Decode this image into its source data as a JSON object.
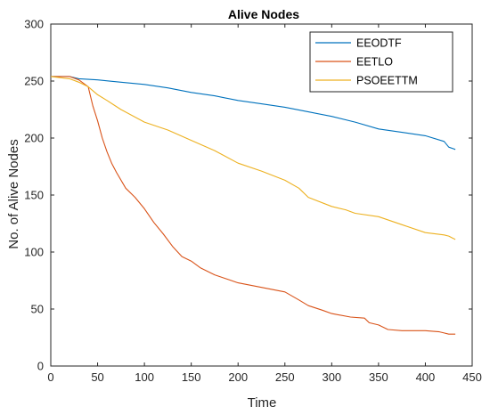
{
  "chart_data": {
    "type": "line",
    "title": "Alive Nodes",
    "xlabel": "Time",
    "ylabel": "No. of Alive Nodes",
    "xlim": [
      0,
      450
    ],
    "ylim": [
      0,
      300
    ],
    "xticks": [
      0,
      50,
      100,
      150,
      200,
      250,
      300,
      350,
      400,
      450
    ],
    "yticks": [
      0,
      50,
      100,
      150,
      200,
      250,
      300
    ],
    "grid": false,
    "legend_position": "top-right",
    "series": [
      {
        "name": "EEODTF",
        "color": "#0072BD",
        "x": [
          0,
          20,
          30,
          50,
          75,
          100,
          125,
          150,
          175,
          200,
          225,
          250,
          275,
          300,
          325,
          350,
          375,
          400,
          420,
          425,
          432
        ],
        "y": [
          254,
          254,
          252,
          251,
          249,
          247,
          244,
          240,
          237,
          233,
          230,
          227,
          223,
          219,
          214,
          208,
          205,
          202,
          197,
          192,
          190
        ]
      },
      {
        "name": "EETLO",
        "color": "#D95319",
        "x": [
          0,
          20,
          30,
          40,
          45,
          50,
          55,
          60,
          65,
          70,
          80,
          90,
          100,
          110,
          120,
          130,
          140,
          150,
          160,
          175,
          200,
          225,
          250,
          265,
          275,
          290,
          300,
          320,
          335,
          340,
          350,
          360,
          375,
          400,
          415,
          420,
          425,
          432
        ],
        "y": [
          254,
          254,
          251,
          245,
          228,
          215,
          200,
          188,
          178,
          170,
          156,
          148,
          138,
          126,
          116,
          105,
          96,
          92,
          86,
          80,
          73,
          69,
          65,
          58,
          53,
          49,
          46,
          43,
          42,
          38,
          36,
          32,
          31,
          31,
          30,
          29,
          28,
          28
        ]
      },
      {
        "name": "PSOEETTM",
        "color": "#EDB120",
        "x": [
          0,
          20,
          30,
          40,
          50,
          60,
          75,
          100,
          125,
          150,
          175,
          200,
          225,
          250,
          265,
          275,
          300,
          315,
          325,
          350,
          375,
          400,
          420,
          425,
          432
        ],
        "y": [
          254,
          252,
          249,
          245,
          238,
          233,
          225,
          214,
          207,
          198,
          189,
          178,
          171,
          163,
          156,
          148,
          140,
          137,
          134,
          131,
          124,
          117,
          115,
          114,
          111
        ]
      }
    ]
  }
}
